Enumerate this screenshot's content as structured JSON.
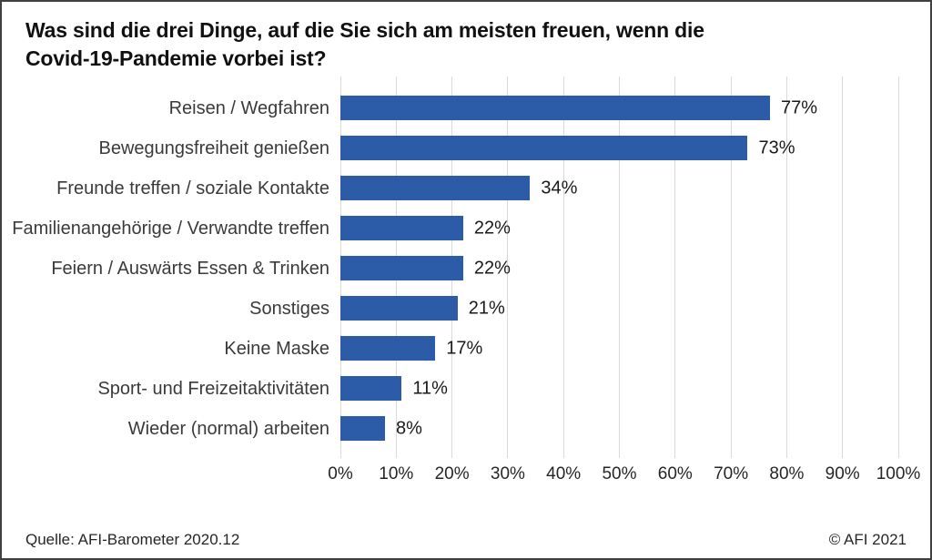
{
  "title": "Was sind die drei Dinge, auf die Sie sich am meisten freuen, wenn die\nCovid-19-Pandemie vorbei ist?",
  "chart_data": {
    "type": "bar",
    "orientation": "horizontal",
    "title": "Was sind die drei Dinge, auf die Sie sich am meisten freuen, wenn die Covid-19-Pandemie vorbei ist?",
    "categories": [
      "Reisen / Wegfahren",
      "Bewegungsfreiheit genießen",
      "Freunde treffen / soziale Kontakte",
      "Familienangehörige / Verwandte treffen",
      "Feiern / Auswärts Essen & Trinken",
      "Sonstiges",
      "Keine Maske",
      "Sport- und Freizeitaktivitäten",
      "Wieder (normal) arbeiten"
    ],
    "values": [
      77,
      73,
      34,
      22,
      22,
      21,
      17,
      11,
      8
    ],
    "data_labels": [
      "77%",
      "73%",
      "34%",
      "22%",
      "22%",
      "21%",
      "17%",
      "11%",
      "8%"
    ],
    "xlabel": "",
    "ylabel": "",
    "xlim": [
      0,
      100
    ],
    "x_ticks": [
      0,
      10,
      20,
      30,
      40,
      50,
      60,
      70,
      80,
      90,
      100
    ],
    "x_tick_labels": [
      "0%",
      "10%",
      "20%",
      "30%",
      "40%",
      "50%",
      "60%",
      "70%",
      "80%",
      "90%",
      "100%"
    ],
    "grid": true,
    "legend": false,
    "bar_color": "#2c5ba7",
    "grid_color": "#d9d9d9"
  },
  "footer": {
    "source": "Quelle: AFI-Barometer 2020.12",
    "copyright": "© AFI 2021"
  }
}
